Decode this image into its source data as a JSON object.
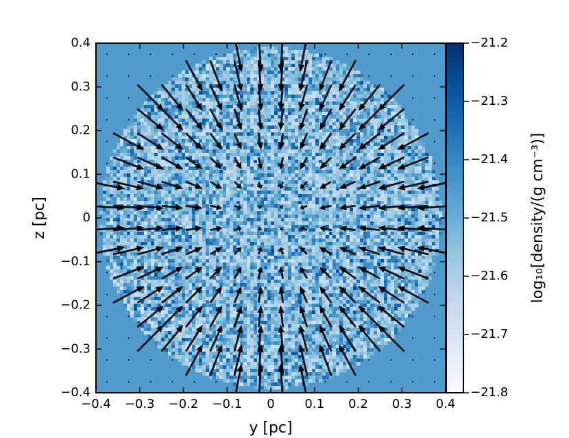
{
  "chart_data": {
    "type": "density_quiver",
    "xlabel": "y [pc]",
    "ylabel": "z [pc]",
    "xlim": [
      -0.4,
      0.4
    ],
    "ylim": [
      -0.4,
      0.4
    ],
    "xticks": [
      {
        "value": -0.4,
        "label": "−0.4"
      },
      {
        "value": -0.3,
        "label": "−0.3"
      },
      {
        "value": -0.2,
        "label": "−0.2"
      },
      {
        "value": -0.1,
        "label": "−0.1"
      },
      0.0,
      0.1,
      0.2,
      0.3,
      0.4
    ],
    "yticks": [
      {
        "value": -0.4,
        "label": "−0.4"
      },
      {
        "value": -0.3,
        "label": "−0.3"
      },
      {
        "value": -0.2,
        "label": "−0.2"
      },
      {
        "value": -0.1,
        "label": "−0.1"
      },
      0.0,
      0.1,
      0.2,
      0.3,
      0.4
    ],
    "colorbar_label": "log₁₀[density/(g cm⁻³)]",
    "clim": [
      -21.8,
      -21.2
    ],
    "cticks": [
      {
        "value": -21.8,
        "label": "−21.8"
      },
      {
        "value": -21.7,
        "label": "−21.7"
      },
      {
        "value": -21.6,
        "label": "−21.6"
      },
      {
        "value": -21.5,
        "label": "−21.5"
      },
      {
        "value": -21.4,
        "label": "−21.4"
      },
      {
        "value": -21.3,
        "label": "−21.3"
      },
      {
        "value": -21.2,
        "label": "−21.2"
      }
    ],
    "colormap": [
      "#f7fbff",
      "#deebf7",
      "#c6dbef",
      "#9ecae1",
      "#6baed6",
      "#4292c6",
      "#2171b5",
      "#08519c",
      "#08306b"
    ],
    "background_value": -21.45,
    "sphere_radius": 0.39,
    "sphere_value_range": [
      -21.78,
      -21.32
    ],
    "quiver_positions": [
      -0.375,
      -0.325,
      -0.275,
      -0.225,
      -0.175,
      -0.125,
      -0.075,
      -0.025,
      0.025,
      0.075,
      0.125,
      0.175,
      0.225,
      0.275,
      0.325,
      0.375
    ],
    "quiver_scale": 0.22
  }
}
